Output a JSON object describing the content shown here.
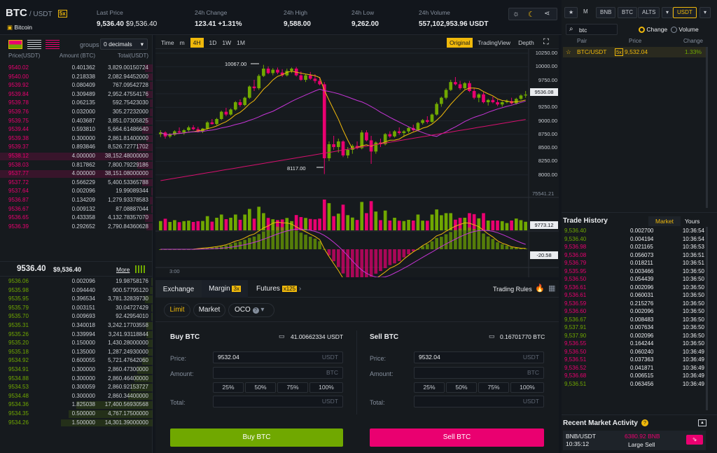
{
  "header": {
    "symbol": "BTC",
    "quote": "/ USDT",
    "leverage_badge": "5x",
    "coin_name": "Bitcoin",
    "stats": [
      {
        "label": "Last Price",
        "value": "9,536.40",
        "sub": "$9,536.40"
      },
      {
        "label": "24h Change",
        "value": "123.41 +1.31%"
      },
      {
        "label": "24h High",
        "value": "9,588.00"
      },
      {
        "label": "24h Low",
        "value": "9,262.00"
      },
      {
        "label": "24h Volume",
        "value": "557,102,953.96 USDT"
      }
    ]
  },
  "orderbook": {
    "groups_label": "groups",
    "groups_value": "0 decimals",
    "headers": {
      "price": "Price(USDT)",
      "amount": "Amount (BTC)",
      "total": "Total(USDT)"
    },
    "asks": [
      {
        "p": "9540.02",
        "a": "0.401362",
        "t": "3,829.00150724",
        "d": 0.05
      },
      {
        "p": "9540.00",
        "a": "0.218338",
        "t": "2,082.94452000",
        "d": 0.03
      },
      {
        "p": "9539.92",
        "a": "0.080409",
        "t": "767.09542728",
        "d": 0.02
      },
      {
        "p": "9539.84",
        "a": "0.309489",
        "t": "2,952.47554176",
        "d": 0.04
      },
      {
        "p": "9539.78",
        "a": "0.062135",
        "t": "592.75423030",
        "d": 0.02
      },
      {
        "p": "9539.76",
        "a": "0.032000",
        "t": "305.27232000",
        "d": 0.02
      },
      {
        "p": "9539.75",
        "a": "0.403687",
        "t": "3,851.07305825",
        "d": 0.05
      },
      {
        "p": "9539.44",
        "a": "0.593810",
        "t": "5,664.61486640",
        "d": 0.07
      },
      {
        "p": "9539.38",
        "a": "0.300000",
        "t": "2,861.81400000",
        "d": 0.04
      },
      {
        "p": "9539.37",
        "a": "0.893846",
        "t": "8,526.72771702",
        "d": 0.1
      },
      {
        "p": "9538.12",
        "a": "4.000000",
        "t": "38,152.48000000",
        "d": 1
      },
      {
        "p": "9538.03",
        "a": "0.817862",
        "t": "7,800.79229186",
        "d": 0.1
      },
      {
        "p": "9537.77",
        "a": "4.000000",
        "t": "38,151.08000000",
        "d": 1
      },
      {
        "p": "9537.72",
        "a": "0.566229",
        "t": "5,400.53365788",
        "d": 0.07
      },
      {
        "p": "9537.64",
        "a": "0.002096",
        "t": "19.99089344",
        "d": 0.01
      },
      {
        "p": "9536.87",
        "a": "0.134209",
        "t": "1,279.93378583",
        "d": 0.02
      },
      {
        "p": "9536.67",
        "a": "0.009132",
        "t": "87.08887044",
        "d": 0.01
      },
      {
        "p": "9536.65",
        "a": "0.433358",
        "t": "4,132.78357070",
        "d": 0.05
      },
      {
        "p": "9536.39",
        "a": "0.292652",
        "t": "2,790.84360628",
        "d": 0.04
      }
    ],
    "mid_price": "9536.40",
    "mid_usd": "$9,536.40",
    "more_label": "More",
    "bids": [
      {
        "p": "9536.06",
        "a": "0.002096",
        "t": "19.98758176",
        "d": 0.01
      },
      {
        "p": "9535.98",
        "a": "0.094440",
        "t": "900.57795120",
        "d": 0.02
      },
      {
        "p": "9535.95",
        "a": "0.396534",
        "t": "3,781.32839730",
        "d": 0.05
      },
      {
        "p": "9535.79",
        "a": "0.003151",
        "t": "30.04727429",
        "d": 0.01
      },
      {
        "p": "9535.70",
        "a": "0.009693",
        "t": "92.42954010",
        "d": 0.01
      },
      {
        "p": "9535.31",
        "a": "0.340018",
        "t": "3,242.17703558",
        "d": 0.04
      },
      {
        "p": "9535.26",
        "a": "0.339994",
        "t": "3,241.93118844",
        "d": 0.04
      },
      {
        "p": "9535.20",
        "a": "0.150000",
        "t": "1,430.28000000",
        "d": 0.03
      },
      {
        "p": "9535.18",
        "a": "0.135000",
        "t": "1,287.24930000",
        "d": 0.03
      },
      {
        "p": "9534.92",
        "a": "0.600055",
        "t": "5,721.47642060",
        "d": 0.07
      },
      {
        "p": "9534.91",
        "a": "0.300000",
        "t": "2,860.47300000",
        "d": 0.1
      },
      {
        "p": "9534.88",
        "a": "0.300000",
        "t": "2,860.46400000",
        "d": 0.12
      },
      {
        "p": "9534.53",
        "a": "0.300059",
        "t": "2,860.92153727",
        "d": 0.14
      },
      {
        "p": "9534.48",
        "a": "0.300000",
        "t": "2,860.34400000",
        "d": 0.16
      },
      {
        "p": "9534.36",
        "a": "1.825038",
        "t": "17,400.56930568",
        "d": 0.5
      },
      {
        "p": "9534.35",
        "a": "0.500000",
        "t": "4,767.17500000",
        "d": 0.55
      },
      {
        "p": "9534.26",
        "a": "1.500000",
        "t": "14,301.39000000",
        "d": 0.6
      }
    ]
  },
  "chart": {
    "intervals": [
      "Time",
      "m",
      "4H",
      "1D",
      "1W",
      "1M"
    ],
    "active_interval": "4H",
    "views": [
      "Original",
      "TradingView",
      "Depth"
    ],
    "active_view": "Original",
    "price_axis": [
      "10250.00",
      "10000.00",
      "9750.00",
      "9500.00",
      "9250.00",
      "9000.00",
      "8750.00",
      "8500.00",
      "8250.00",
      "8000.00"
    ],
    "current_price_tag": "9536.08",
    "high_label": "10067.00",
    "low_label": "8117.00",
    "volume_axis_top": "75541.21",
    "volume_tag": "9773.12",
    "macd_tag": "-20.58",
    "time_label": "3:00"
  },
  "chart_data": {
    "type": "candlestick",
    "ylim": [
      7900,
      10300
    ],
    "candles": [
      [
        8830,
        8900,
        8780,
        8860
      ],
      [
        8860,
        8880,
        8750,
        8790
      ],
      [
        8790,
        8850,
        8760,
        8820
      ],
      [
        8820,
        8900,
        8800,
        8880
      ],
      [
        8880,
        8950,
        8850,
        8860
      ],
      [
        8860,
        8920,
        8820,
        8900
      ],
      [
        8900,
        8980,
        8880,
        8950
      ],
      [
        8950,
        8990,
        8900,
        8920
      ],
      [
        8920,
        8960,
        8860,
        8880
      ],
      [
        8880,
        8940,
        8850,
        8930
      ],
      [
        8930,
        9060,
        8910,
        9040
      ],
      [
        9040,
        9100,
        9000,
        9010
      ],
      [
        9010,
        9120,
        8990,
        9100
      ],
      [
        9100,
        9250,
        9080,
        9230
      ],
      [
        9230,
        9300,
        9150,
        9180
      ],
      [
        9180,
        9290,
        9160,
        9270
      ],
      [
        9270,
        9420,
        9250,
        9400
      ],
      [
        9400,
        9450,
        9320,
        9350
      ],
      [
        9350,
        9500,
        9330,
        9480
      ],
      [
        9480,
        9700,
        9460,
        9680
      ],
      [
        9680,
        9800,
        9600,
        9650
      ],
      [
        9650,
        9900,
        9620,
        9870
      ],
      [
        9870,
        10067,
        9850,
        10000
      ],
      [
        10000,
        10040,
        9900,
        9920
      ],
      [
        9920,
        10010,
        9880,
        9980
      ],
      [
        9980,
        10020,
        9900,
        9930
      ],
      [
        9930,
        9990,
        9850,
        9880
      ],
      [
        9880,
        10000,
        9860,
        9960
      ],
      [
        9960,
        10020,
        9920,
        10000
      ],
      [
        10000,
        10030,
        9860,
        9880
      ],
      [
        9880,
        9950,
        9780,
        9800
      ],
      [
        9800,
        9900,
        9760,
        9880
      ],
      [
        9880,
        9940,
        9800,
        9820
      ],
      [
        9820,
        9900,
        9740,
        9780
      ],
      [
        9780,
        9850,
        9700,
        9720
      ],
      [
        9720,
        9760,
        8117,
        8400
      ],
      [
        8400,
        8700,
        8350,
        8650
      ],
      [
        8650,
        8800,
        8550,
        8600
      ],
      [
        8600,
        8750,
        8500,
        8700
      ],
      [
        8700,
        8720,
        8420,
        8450
      ],
      [
        8450,
        8600,
        8400,
        8550
      ],
      [
        8550,
        8650,
        8480,
        8620
      ],
      [
        8620,
        8700,
        8560,
        8580
      ],
      [
        8580,
        8900,
        8560,
        8860
      ],
      [
        8860,
        8900,
        8700,
        8720
      ],
      [
        8720,
        8800,
        8300,
        8520
      ],
      [
        8520,
        8700,
        8480,
        8680
      ],
      [
        8680,
        8750,
        8600,
        8650
      ],
      [
        8650,
        8850,
        8630,
        8830
      ],
      [
        8830,
        8880,
        8760,
        8790
      ],
      [
        8790,
        8900,
        8770,
        8880
      ],
      [
        8880,
        8950,
        8820,
        8850
      ],
      [
        8850,
        8900,
        8780,
        8880
      ],
      [
        8880,
        8960,
        8850,
        8940
      ],
      [
        8940,
        9000,
        8880,
        8900
      ],
      [
        8900,
        9050,
        8880,
        9030
      ],
      [
        9030,
        9100,
        9000,
        9080
      ],
      [
        9080,
        9150,
        9020,
        9050
      ],
      [
        9050,
        9200,
        9030,
        9180
      ],
      [
        9180,
        9400,
        9160,
        9370
      ],
      [
        9370,
        9500,
        9320,
        9480
      ],
      [
        9480,
        9650,
        9450,
        9620
      ],
      [
        9620,
        9800,
        9600,
        9760
      ],
      [
        9760,
        9850,
        9700,
        9720
      ],
      [
        9720,
        9780,
        9620,
        9650
      ],
      [
        9650,
        9760,
        9630,
        9740
      ],
      [
        9740,
        9780,
        9580,
        9600
      ],
      [
        9600,
        9650,
        9450,
        9480
      ],
      [
        9480,
        9560,
        9400,
        9540
      ],
      [
        9540,
        9580,
        9380,
        9400
      ],
      [
        9400,
        9460,
        9340,
        9440
      ],
      [
        9440,
        9500,
        9380,
        9400
      ],
      [
        9400,
        9450,
        9330,
        9360
      ],
      [
        9360,
        9420,
        9320,
        9400
      ],
      [
        9400,
        9450,
        9380,
        9420
      ],
      [
        9420,
        9480,
        9360,
        9380
      ],
      [
        9380,
        9480,
        9360,
        9460
      ],
      [
        9460,
        9540,
        9440,
        9520
      ],
      [
        9520,
        9600,
        9480,
        9536
      ]
    ]
  },
  "trade": {
    "tabs": [
      "Exchange",
      "Margin",
      "Futures"
    ],
    "margin_badge": "3x",
    "futures_badge": "x125",
    "trading_rules": "Trading Rules",
    "order_types": [
      "Limit",
      "Market",
      "OCO"
    ],
    "buy": {
      "title": "Buy BTC",
      "balance": "41.00662334 USDT",
      "price_label": "Price:",
      "price": "9532.04",
      "price_unit": "USDT",
      "amount_label": "Amount:",
      "amount_unit": "BTC",
      "total_label": "Total:",
      "total_unit": "USDT",
      "button": "Buy BTC"
    },
    "sell": {
      "title": "Sell BTC",
      "balance": "0.16701770 BTC",
      "price_label": "Price:",
      "price": "9532.04",
      "price_unit": "USDT",
      "amount_label": "Amount:",
      "amount_unit": "BTC",
      "total_label": "Total:",
      "total_unit": "USDT",
      "button": "Sell BTC"
    },
    "percents": [
      "25%",
      "50%",
      "75%",
      "100%"
    ]
  },
  "market": {
    "tabs": [
      "M",
      "BNB",
      "BTC",
      "ALTS",
      "USDT"
    ],
    "search_value": "btc",
    "radio_change": "Change",
    "radio_volume": "Volume",
    "headers": {
      "pair": "Pair",
      "price": "Price",
      "change": "Change"
    },
    "rows": [
      {
        "pair": "BTC/USDT",
        "badge": "5x",
        "price": "9,532.04",
        "change": "1.33%"
      }
    ]
  },
  "trade_history": {
    "title": "Trade History",
    "tabs": [
      "Market",
      "Yours"
    ],
    "rows": [
      {
        "p": "9,536.40",
        "a": "0.002700",
        "t": "10:36:54",
        "s": "g"
      },
      {
        "p": "9,536.40",
        "a": "0.004194",
        "t": "10:36:54",
        "s": "g"
      },
      {
        "p": "9,536.98",
        "a": "0.021165",
        "t": "10:36:53",
        "s": "r"
      },
      {
        "p": "9,536.08",
        "a": "0.056073",
        "t": "10:36:51",
        "s": "r"
      },
      {
        "p": "9,536.79",
        "a": "0.018211",
        "t": "10:36:51",
        "s": "r"
      },
      {
        "p": "9,535.95",
        "a": "0.003466",
        "t": "10:36:50",
        "s": "r"
      },
      {
        "p": "9,536.50",
        "a": "0.054439",
        "t": "10:36:50",
        "s": "r"
      },
      {
        "p": "9,536.61",
        "a": "0.002096",
        "t": "10:36:50",
        "s": "r"
      },
      {
        "p": "9,536.61",
        "a": "0.060031",
        "t": "10:36:50",
        "s": "r"
      },
      {
        "p": "9,536.59",
        "a": "0.215276",
        "t": "10:36:50",
        "s": "r"
      },
      {
        "p": "9,536.60",
        "a": "0.002096",
        "t": "10:36:50",
        "s": "r"
      },
      {
        "p": "9,536.67",
        "a": "0.008483",
        "t": "10:36:50",
        "s": "g"
      },
      {
        "p": "9,537.91",
        "a": "0.007634",
        "t": "10:36:50",
        "s": "g"
      },
      {
        "p": "9,537.90",
        "a": "0.002096",
        "t": "10:36:50",
        "s": "g"
      },
      {
        "p": "9,536.55",
        "a": "0.164244",
        "t": "10:36:50",
        "s": "r"
      },
      {
        "p": "9,536.50",
        "a": "0.060240",
        "t": "10:36:49",
        "s": "r"
      },
      {
        "p": "9,536.51",
        "a": "0.037363",
        "t": "10:36:49",
        "s": "r"
      },
      {
        "p": "9,536.52",
        "a": "0.041871",
        "t": "10:36:49",
        "s": "r"
      },
      {
        "p": "9,536.68",
        "a": "0.006515",
        "t": "10:36:49",
        "s": "r"
      },
      {
        "p": "9,536.51",
        "a": "0.063456",
        "t": "10:36:49",
        "s": "g"
      }
    ]
  },
  "recent_activity": {
    "title": "Recent Market Activity",
    "pair": "BNB/USDT",
    "time": "10:35:12",
    "amount": "6380.92 BNB",
    "type": "Large Sell"
  },
  "colors": {
    "green": "#70a800",
    "red": "#ea0070",
    "accent": "#f0b90b"
  }
}
